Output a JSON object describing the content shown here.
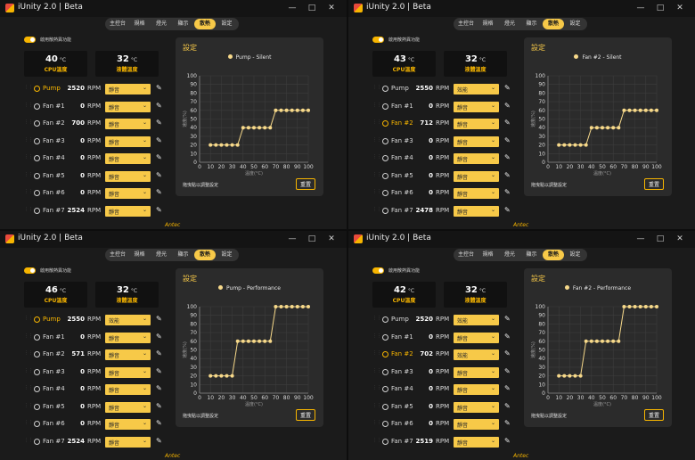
{
  "app": {
    "title": "iUnity 2.0 | Beta",
    "brand": "Antec",
    "window_buttons": [
      "—",
      "□",
      "✕"
    ],
    "tabs": [
      "主控台",
      "規格",
      "燈光",
      "顯示",
      "散熱",
      "設定"
    ],
    "active_tab": 4,
    "toggle_label": "啟用散熱異功能",
    "cpu_label": "CPU溫度",
    "liquid_label": "液體溫度",
    "temp_unit": "°C",
    "rpm_unit": "RPM",
    "panel_title": "設定",
    "hint": "拖曳點以調整設定",
    "reset_label": "重置",
    "accent": "#f7b500",
    "curve_color": "#f7d98a"
  },
  "windows": [
    {
      "cpu_temp": "40",
      "liquid_temp": "32",
      "selected": 0,
      "fans": [
        {
          "name": "Pump",
          "rpm": "2520",
          "mode": "靜音"
        },
        {
          "name": "Fan #1",
          "rpm": "0",
          "mode": "靜音"
        },
        {
          "name": "Fan #2",
          "rpm": "700",
          "mode": "靜音"
        },
        {
          "name": "Fan #3",
          "rpm": "0",
          "mode": "靜音"
        },
        {
          "name": "Fan #4",
          "rpm": "0",
          "mode": "靜音"
        },
        {
          "name": "Fan #5",
          "rpm": "0",
          "mode": "靜音"
        },
        {
          "name": "Fan #6",
          "rpm": "0",
          "mode": "靜音"
        },
        {
          "name": "Fan #7",
          "rpm": "2524",
          "mode": "靜音"
        }
      ],
      "chart_data": {
        "type": "line",
        "series": [
          {
            "name": "Pump - Silent",
            "x": [
              10,
              15,
              20,
              25,
              30,
              35,
              40,
              45,
              50,
              55,
              60,
              65,
              70,
              75,
              80,
              85,
              90,
              95,
              100
            ],
            "y": [
              20,
              20,
              20,
              20,
              20,
              20,
              40,
              40,
              40,
              40,
              40,
              40,
              60,
              60,
              60,
              60,
              60,
              60,
              60
            ]
          }
        ],
        "xlabel": "溫度(°C)",
        "ylabel": "速度(%)",
        "x_ticks": [
          0,
          10,
          20,
          30,
          40,
          50,
          60,
          70,
          80,
          90,
          100
        ],
        "y_ticks": [
          0,
          10,
          20,
          30,
          40,
          50,
          60,
          70,
          80,
          90,
          100
        ],
        "xlim": [
          0,
          100
        ],
        "ylim": [
          0,
          100
        ],
        "grid": true,
        "legend": "top-center"
      }
    },
    {
      "cpu_temp": "43",
      "liquid_temp": "32",
      "selected": 2,
      "fans": [
        {
          "name": "Pump",
          "rpm": "2550",
          "mode": "效能"
        },
        {
          "name": "Fan #1",
          "rpm": "0",
          "mode": "靜音"
        },
        {
          "name": "Fan #2",
          "rpm": "712",
          "mode": "靜音"
        },
        {
          "name": "Fan #3",
          "rpm": "0",
          "mode": "靜音"
        },
        {
          "name": "Fan #4",
          "rpm": "0",
          "mode": "靜音"
        },
        {
          "name": "Fan #5",
          "rpm": "0",
          "mode": "靜音"
        },
        {
          "name": "Fan #6",
          "rpm": "0",
          "mode": "靜音"
        },
        {
          "name": "Fan #7",
          "rpm": "2478",
          "mode": "靜音"
        }
      ],
      "chart_data": {
        "type": "line",
        "series": [
          {
            "name": "Fan #2 - Silent",
            "x": [
              10,
              15,
              20,
              25,
              30,
              35,
              40,
              45,
              50,
              55,
              60,
              65,
              70,
              75,
              80,
              85,
              90,
              95,
              100
            ],
            "y": [
              20,
              20,
              20,
              20,
              20,
              20,
              40,
              40,
              40,
              40,
              40,
              40,
              60,
              60,
              60,
              60,
              60,
              60,
              60
            ]
          }
        ],
        "xlabel": "溫度(°C)",
        "ylabel": "速度(%)",
        "x_ticks": [
          0,
          10,
          20,
          30,
          40,
          50,
          60,
          70,
          80,
          90,
          100
        ],
        "y_ticks": [
          0,
          10,
          20,
          30,
          40,
          50,
          60,
          70,
          80,
          90,
          100
        ],
        "xlim": [
          0,
          100
        ],
        "ylim": [
          0,
          100
        ],
        "grid": true,
        "legend": "top-center"
      }
    },
    {
      "cpu_temp": "46",
      "liquid_temp": "32",
      "selected": 0,
      "fans": [
        {
          "name": "Pump",
          "rpm": "2550",
          "mode": "效能"
        },
        {
          "name": "Fan #1",
          "rpm": "0",
          "mode": "靜音"
        },
        {
          "name": "Fan #2",
          "rpm": "571",
          "mode": "靜音"
        },
        {
          "name": "Fan #3",
          "rpm": "0",
          "mode": "靜音"
        },
        {
          "name": "Fan #4",
          "rpm": "0",
          "mode": "靜音"
        },
        {
          "name": "Fan #5",
          "rpm": "0",
          "mode": "靜音"
        },
        {
          "name": "Fan #6",
          "rpm": "0",
          "mode": "靜音"
        },
        {
          "name": "Fan #7",
          "rpm": "2524",
          "mode": "靜音"
        }
      ],
      "chart_data": {
        "type": "line",
        "series": [
          {
            "name": "Pump - Performance",
            "x": [
              10,
              15,
              20,
              25,
              30,
              35,
              40,
              45,
              50,
              55,
              60,
              65,
              70,
              75,
              80,
              85,
              90,
              95,
              100
            ],
            "y": [
              20,
              20,
              20,
              20,
              20,
              60,
              60,
              60,
              60,
              60,
              60,
              60,
              100,
              100,
              100,
              100,
              100,
              100,
              100
            ]
          }
        ],
        "xlabel": "溫度(°C)",
        "ylabel": "速度(%)",
        "x_ticks": [
          0,
          10,
          20,
          30,
          40,
          50,
          60,
          70,
          80,
          90,
          100
        ],
        "y_ticks": [
          0,
          10,
          20,
          30,
          40,
          50,
          60,
          70,
          80,
          90,
          100
        ],
        "xlim": [
          0,
          100
        ],
        "ylim": [
          0,
          100
        ],
        "grid": true,
        "legend": "top-center"
      }
    },
    {
      "cpu_temp": "42",
      "liquid_temp": "32",
      "selected": 2,
      "fans": [
        {
          "name": "Pump",
          "rpm": "2520",
          "mode": "效能"
        },
        {
          "name": "Fan #1",
          "rpm": "0",
          "mode": "靜音"
        },
        {
          "name": "Fan #2",
          "rpm": "702",
          "mode": "效能"
        },
        {
          "name": "Fan #3",
          "rpm": "0",
          "mode": "靜音"
        },
        {
          "name": "Fan #4",
          "rpm": "0",
          "mode": "靜音"
        },
        {
          "name": "Fan #5",
          "rpm": "0",
          "mode": "靜音"
        },
        {
          "name": "Fan #6",
          "rpm": "0",
          "mode": "靜音"
        },
        {
          "name": "Fan #7",
          "rpm": "2519",
          "mode": "靜音"
        }
      ],
      "chart_data": {
        "type": "line",
        "series": [
          {
            "name": "Fan #2 - Performance",
            "x": [
              10,
              15,
              20,
              25,
              30,
              35,
              40,
              45,
              50,
              55,
              60,
              65,
              70,
              75,
              80,
              85,
              90,
              95,
              100
            ],
            "y": [
              20,
              20,
              20,
              20,
              20,
              60,
              60,
              60,
              60,
              60,
              60,
              60,
              100,
              100,
              100,
              100,
              100,
              100,
              100
            ]
          }
        ],
        "xlabel": "溫度(°C)",
        "ylabel": "速度(%)",
        "x_ticks": [
          0,
          10,
          20,
          30,
          40,
          50,
          60,
          70,
          80,
          90,
          100
        ],
        "y_ticks": [
          0,
          10,
          20,
          30,
          40,
          50,
          60,
          70,
          80,
          90,
          100
        ],
        "xlim": [
          0,
          100
        ],
        "ylim": [
          0,
          100
        ],
        "grid": true,
        "legend": "top-center"
      }
    }
  ]
}
